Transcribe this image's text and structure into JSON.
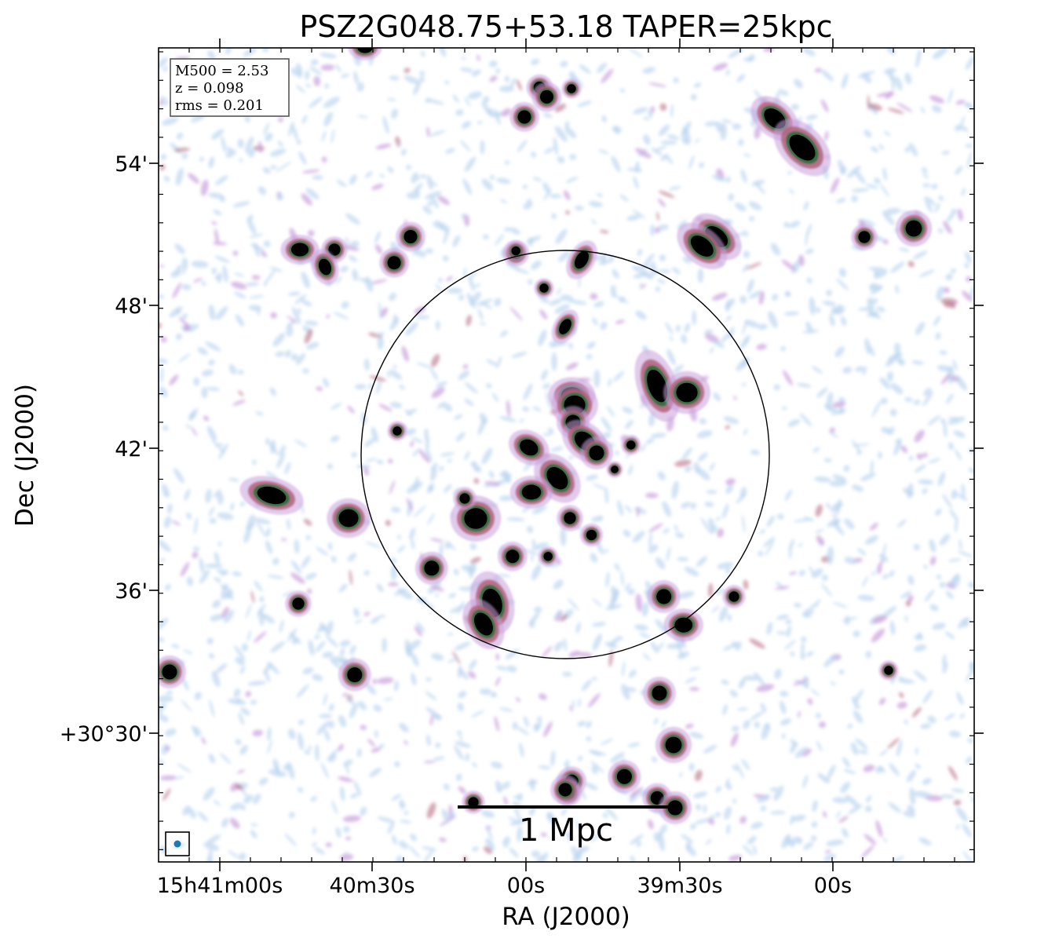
{
  "chart_data": {
    "type": "heatmap",
    "title": "PSZ2G048.75+53.18 TAPER=25kpc",
    "xlabel": "RA (J2000)",
    "ylabel": "Dec (J2000)",
    "xticks": [
      "15h41m00s",
      "40m30s",
      "00s",
      "39m30s",
      "00s"
    ],
    "yticks": [
      "54'",
      "48'",
      "42'",
      "36'",
      "+30°30'"
    ],
    "annotation": [
      "M500 = 2.53",
      "z = 0.098",
      "rms = 0.201"
    ],
    "scalebar_label": "1 Mpc",
    "colormap": [
      "#b8d4ee",
      "#c9a0dc",
      "#b0607a",
      "#2a6e3a",
      "#000000"
    ],
    "sources": [
      {
        "ra_deg": 235.25,
        "dec_deg": 30.83,
        "kind": "point"
      },
      {
        "ra_deg": 235.2292,
        "dec_deg": 30.8483,
        "kind": "point"
      },
      {
        "ra_deg": 234.8417,
        "dec_deg": 30.8483,
        "kind": "point"
      },
      {
        "ra_deg": 234.86,
        "dec_deg": 30.8417,
        "kind": "point"
      },
      {
        "ra_deg": 235.0333,
        "dec_deg": 30.785,
        "kind": "point"
      },
      {
        "ra_deg": 235.025,
        "dec_deg": 30.7367,
        "kind": "point"
      },
      {
        "ra_deg": 235.0433,
        "dec_deg": 30.6783,
        "kind": "point"
      },
      {
        "ra_deg": 234.95,
        "dec_deg": 30.7017,
        "kind": "point"
      },
      {
        "ra_deg": 234.9167,
        "dec_deg": 30.7433,
        "kind": "point"
      },
      {
        "ra_deg": 234.9583,
        "dec_deg": 30.4683,
        "kind": "point"
      },
      {
        "ra_deg": 234.8833,
        "dec_deg": 30.575,
        "kind": "point"
      },
      {
        "ra_deg": 235.1467,
        "dec_deg": 30.65,
        "kind": "point"
      },
      {
        "ra_deg": 235.0658,
        "dec_deg": 30.9533,
        "kind": "point"
      },
      {
        "ra_deg": 235.0792,
        "dec_deg": 30.7,
        "kind": "point"
      },
      {
        "ra_deg": 235.1,
        "dec_deg": 30.6233,
        "kind": "point"
      },
      {
        "ra_deg": 234.9083,
        "dec_deg": 30.595,
        "kind": "point"
      },
      {
        "ra_deg": 235.2025,
        "dec_deg": 30.615,
        "kind": "point"
      },
      {
        "ra_deg": 235.025,
        "dec_deg": 30.465,
        "kind": "point"
      },
      {
        "ra_deg": 235.0292,
        "dec_deg": 30.4567,
        "kind": "point"
      },
      {
        "ra_deg": 234.9167,
        "dec_deg": 30.4533,
        "kind": "point"
      },
      {
        "ra_deg": 235.0958,
        "dec_deg": 30.8367,
        "kind": "point"
      },
      {
        "ra_deg": 235.0958,
        "dec_deg": 30.8383,
        "kind": "point"
      },
      {
        "ra_deg": 235.3,
        "dec_deg": 30.54,
        "kind": "point"
      },
      {
        "ra_deg": 235.0567,
        "dec_deg": 30.9467,
        "kind": "point"
      },
      {
        "ra_deg": 235.0,
        "dec_deg": 30.6383,
        "kind": "point"
      },
      {
        "ra_deg": 235.055,
        "dec_deg": 30.6233,
        "kind": "point"
      }
    ],
    "circle": {
      "center_ra": 235.0333,
      "center_dec": 30.695
    }
  }
}
